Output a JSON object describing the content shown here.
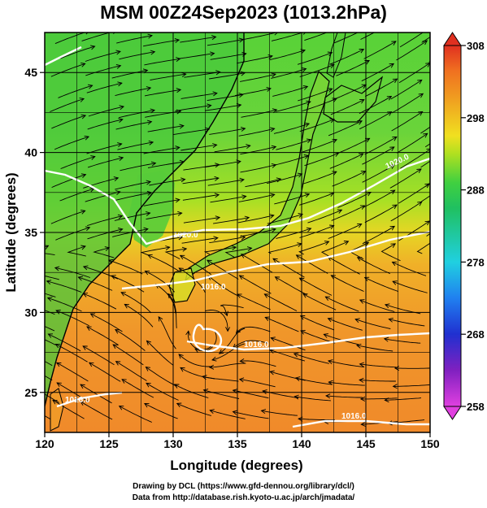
{
  "title": "MSM 00Z24Sep2023 (1013.2hPa)",
  "x_axis": {
    "label": "Longitude (degrees)",
    "ticks": [
      "120",
      "125",
      "130",
      "135",
      "140",
      "145",
      "150"
    ],
    "min": 120,
    "max": 150
  },
  "y_axis": {
    "label": "Latitude  (degrees)",
    "ticks": [
      "25",
      "30",
      "35",
      "40",
      "45"
    ],
    "min": 22.5,
    "max": 47.5
  },
  "colorbar": {
    "ticks": [
      "258",
      "268",
      "278",
      "288",
      "298",
      "308"
    ],
    "min": 258,
    "max": 308,
    "colors": [
      "#e040e0",
      "#7020c0",
      "#2030d0",
      "#2080f0",
      "#20d0e0",
      "#20c060",
      "#30d040",
      "#a0e020",
      "#f0e020",
      "#f0a020",
      "#f07020",
      "#e03020"
    ]
  },
  "contours": {
    "labels": [
      "1020.0",
      "1020.0",
      "1016.0",
      "1016.0",
      "1016.0",
      "1016.0"
    ],
    "color": "#ffffff"
  },
  "credits": {
    "line1": "Drawing by DCL (https://www.gfd-dennou.org/library/dcl/)",
    "line2": "Data from http://database.rish.kyoto-u.ac.jp/arch/jmadata/"
  }
}
